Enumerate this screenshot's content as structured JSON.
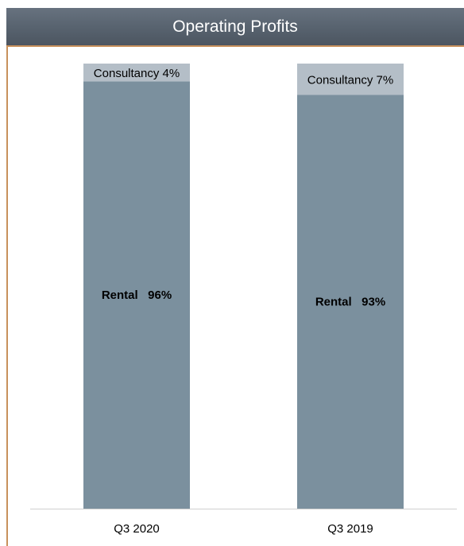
{
  "header": {
    "title": "Operating Profits"
  },
  "chart_data": {
    "type": "bar",
    "stacked": true,
    "normalized": true,
    "categories": [
      "Q3 2020",
      "Q3 2019"
    ],
    "series": [
      {
        "name": "Rental",
        "values": [
          96,
          93
        ],
        "labels": [
          "Rental   96%",
          "Rental   93%"
        ]
      },
      {
        "name": "Consultancy",
        "values": [
          4,
          7
        ],
        "labels": [
          "Consultancy 4%",
          "Consultancy 7%"
        ]
      }
    ],
    "title": "Operating Profits",
    "xlabel": "",
    "ylabel": "",
    "ylim": [
      0,
      100
    ],
    "grid": false,
    "legend": "none",
    "colors": {
      "Rental": "#7b909e",
      "Consultancy": "#b4bec7",
      "axis": "#d0d0d0",
      "frame": "#c8915c"
    }
  }
}
